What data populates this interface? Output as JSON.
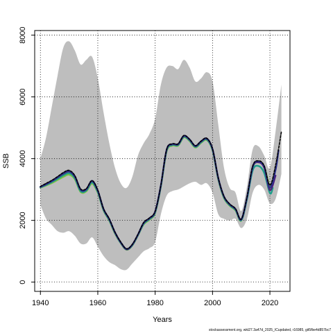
{
  "chart_data": {
    "type": "line",
    "xlabel": "Years",
    "ylabel": "SSB",
    "xlim": [
      1938,
      2027
    ],
    "ylim": [
      -300,
      8150
    ],
    "x_ticks": [
      1940,
      1960,
      1980,
      2000,
      2020
    ],
    "y_ticks": [
      0,
      2000,
      4000,
      6000,
      8000
    ],
    "grid": true,
    "footnote": "stockassessment.org, wkt27.3a47d_2025_ICupdated, r16985, git5fbe4d857bc7",
    "colors": {
      "band": "#bebebe",
      "grid": "#000000",
      "final": "#2d2d2d"
    },
    "band": {
      "x": [
        1940,
        1942,
        1944,
        1946,
        1948,
        1950,
        1952,
        1954,
        1956,
        1958,
        1960,
        1962,
        1964,
        1966,
        1968,
        1970,
        1972,
        1974,
        1976,
        1978,
        1980,
        1982,
        1984,
        1986,
        1988,
        1990,
        1992,
        1994,
        1996,
        1998,
        2000,
        2002,
        2004,
        2006,
        2008,
        2010,
        2012,
        2014,
        2016,
        2018,
        2020,
        2022,
        2024
      ],
      "upper": [
        4000,
        4700,
        5700,
        6700,
        7600,
        7800,
        7500,
        7050,
        7200,
        7300,
        6600,
        5500,
        4500,
        3700,
        3200,
        3050,
        3400,
        4100,
        4500,
        4800,
        5300,
        6400,
        6950,
        7000,
        6900,
        7200,
        6950,
        6500,
        6600,
        6800,
        6500,
        5100,
        3700,
        3050,
        2900,
        2300,
        3100,
        4300,
        4400,
        4100,
        3700,
        4900,
        6400
      ],
      "lower": [
        2500,
        2050,
        1850,
        1650,
        1600,
        1650,
        1500,
        1250,
        1250,
        1450,
        1150,
        850,
        650,
        550,
        420,
        400,
        600,
        800,
        1000,
        1100,
        1300,
        2200,
        2800,
        2950,
        3000,
        3100,
        3200,
        3250,
        3150,
        3200,
        2900,
        2200,
        2050,
        2000,
        2050,
        1750,
        2050,
        2900,
        3150,
        3000,
        2550,
        2700,
        3500
      ]
    },
    "series": [
      {
        "color": "#000000",
        "width": 1.6,
        "dash": "3,2",
        "x": [
          1940,
          1942,
          1944,
          1946,
          1948,
          1950,
          1952,
          1954,
          1956,
          1958,
          1960,
          1962,
          1964,
          1966,
          1968,
          1970,
          1972,
          1974,
          1976,
          1978,
          1980,
          1982,
          1984,
          1986,
          1988,
          1990,
          1992,
          1994,
          1996,
          1998,
          2000,
          2002,
          2004,
          2006,
          2008,
          2010,
          2012,
          2014,
          2016,
          2018,
          2020,
          2022,
          2024
        ],
        "y": [
          3100,
          3200,
          3300,
          3420,
          3550,
          3620,
          3450,
          3020,
          3030,
          3290,
          2980,
          2380,
          2050,
          1620,
          1300,
          1080,
          1220,
          1550,
          1930,
          2080,
          2300,
          3150,
          4300,
          4480,
          4480,
          4750,
          4630,
          4420,
          4570,
          4660,
          4320,
          3380,
          2780,
          2530,
          2380,
          2040,
          2750,
          3760,
          3930,
          3770,
          3140,
          3800,
          4870
        ]
      },
      {
        "color": "#2a2f8a",
        "width": 2.4,
        "x": [
          1940,
          1942,
          1944,
          1946,
          1948,
          1950,
          1952,
          1954,
          1956,
          1958,
          1960,
          1962,
          1964,
          1966,
          1968,
          1970,
          1972,
          1974,
          1976,
          1978,
          1980,
          1982,
          1984,
          1986,
          1988,
          1990,
          1992,
          1994,
          1996,
          1998,
          2000,
          2002,
          2004,
          2006,
          2008,
          2010,
          2012,
          2014,
          2016,
          2018,
          2020,
          2022,
          2023
        ],
        "y": [
          3090,
          3180,
          3280,
          3400,
          3530,
          3600,
          3430,
          3000,
          3010,
          3280,
          2960,
          2370,
          2040,
          1610,
          1290,
          1070,
          1210,
          1540,
          1920,
          2070,
          2290,
          3140,
          4290,
          4470,
          4470,
          4740,
          4620,
          4410,
          4560,
          4650,
          4310,
          3370,
          2770,
          2520,
          2370,
          2030,
          2740,
          3740,
          3910,
          3740,
          3060,
          3650,
          4270
        ]
      },
      {
        "color": "#4e1f7a",
        "width": 2.2,
        "x": [
          1940,
          1942,
          1944,
          1946,
          1948,
          1950,
          1952,
          1954,
          1956,
          1958,
          1960,
          1962,
          1964,
          1966,
          1968,
          1970,
          1972,
          1974,
          1976,
          1978,
          1980,
          1982,
          1984,
          1986,
          1988,
          1990,
          1992,
          1994,
          1996,
          1998,
          2000,
          2002,
          2004,
          2006,
          2008,
          2010,
          2012,
          2014,
          2016,
          2018,
          2020,
          2022
        ],
        "y": [
          3080,
          3170,
          3270,
          3390,
          3510,
          3580,
          3410,
          2990,
          3000,
          3270,
          2950,
          2360,
          2030,
          1600,
          1280,
          1060,
          1200,
          1530,
          1910,
          2060,
          2280,
          3130,
          4280,
          4460,
          4460,
          4730,
          4610,
          4400,
          4550,
          4640,
          4300,
          3360,
          2760,
          2510,
          2360,
          2020,
          2730,
          3720,
          3880,
          3700,
          2980,
          3450
        ]
      },
      {
        "color": "#1f9d8a",
        "width": 2.4,
        "x": [
          1940,
          1942,
          1944,
          1946,
          1948,
          1950,
          1952,
          1954,
          1956,
          1958,
          1960,
          1962,
          1964,
          1966,
          1968,
          1970,
          1972,
          1974,
          1976,
          1978,
          1980,
          1982,
          1984,
          1986,
          1988,
          1990,
          1992,
          1994,
          1996,
          1998,
          2000,
          2002,
          2004,
          2006,
          2008,
          2010,
          2012,
          2014,
          2016,
          2018,
          2020,
          2021
        ],
        "y": [
          3070,
          3150,
          3240,
          3350,
          3460,
          3530,
          3370,
          2950,
          2970,
          3230,
          2920,
          2340,
          2010,
          1590,
          1270,
          1060,
          1190,
          1520,
          1890,
          2040,
          2260,
          3110,
          4260,
          4440,
          4440,
          4710,
          4590,
          4380,
          4530,
          4620,
          4280,
          3340,
          2740,
          2490,
          2340,
          2000,
          2680,
          3620,
          3760,
          3540,
          2880,
          3050
        ]
      },
      {
        "color": "#7cc242",
        "width": 2.4,
        "x": [
          1940,
          1942,
          1944,
          1946,
          1948,
          1950,
          1952,
          1954,
          1956,
          1958,
          1960,
          1962,
          1964,
          1966,
          1968,
          1970,
          1972,
          1974,
          1976,
          1978,
          1980,
          1982,
          1984,
          1986,
          1988,
          1990,
          1992,
          1994,
          1996,
          1998,
          2000,
          2002,
          2004,
          2006,
          2008,
          2010,
          2012,
          2014,
          2016,
          2018,
          2020
        ],
        "y": [
          3060,
          3130,
          3210,
          3310,
          3410,
          3480,
          3330,
          2920,
          2940,
          3190,
          2890,
          2320,
          1990,
          1570,
          1260,
          1050,
          1180,
          1510,
          1870,
          2020,
          2240,
          3090,
          4230,
          4420,
          4420,
          4690,
          4570,
          4360,
          4510,
          4600,
          4260,
          3320,
          2720,
          2470,
          2320,
          1990,
          2720,
          3720,
          3880,
          3720,
          3010
        ]
      }
    ]
  }
}
